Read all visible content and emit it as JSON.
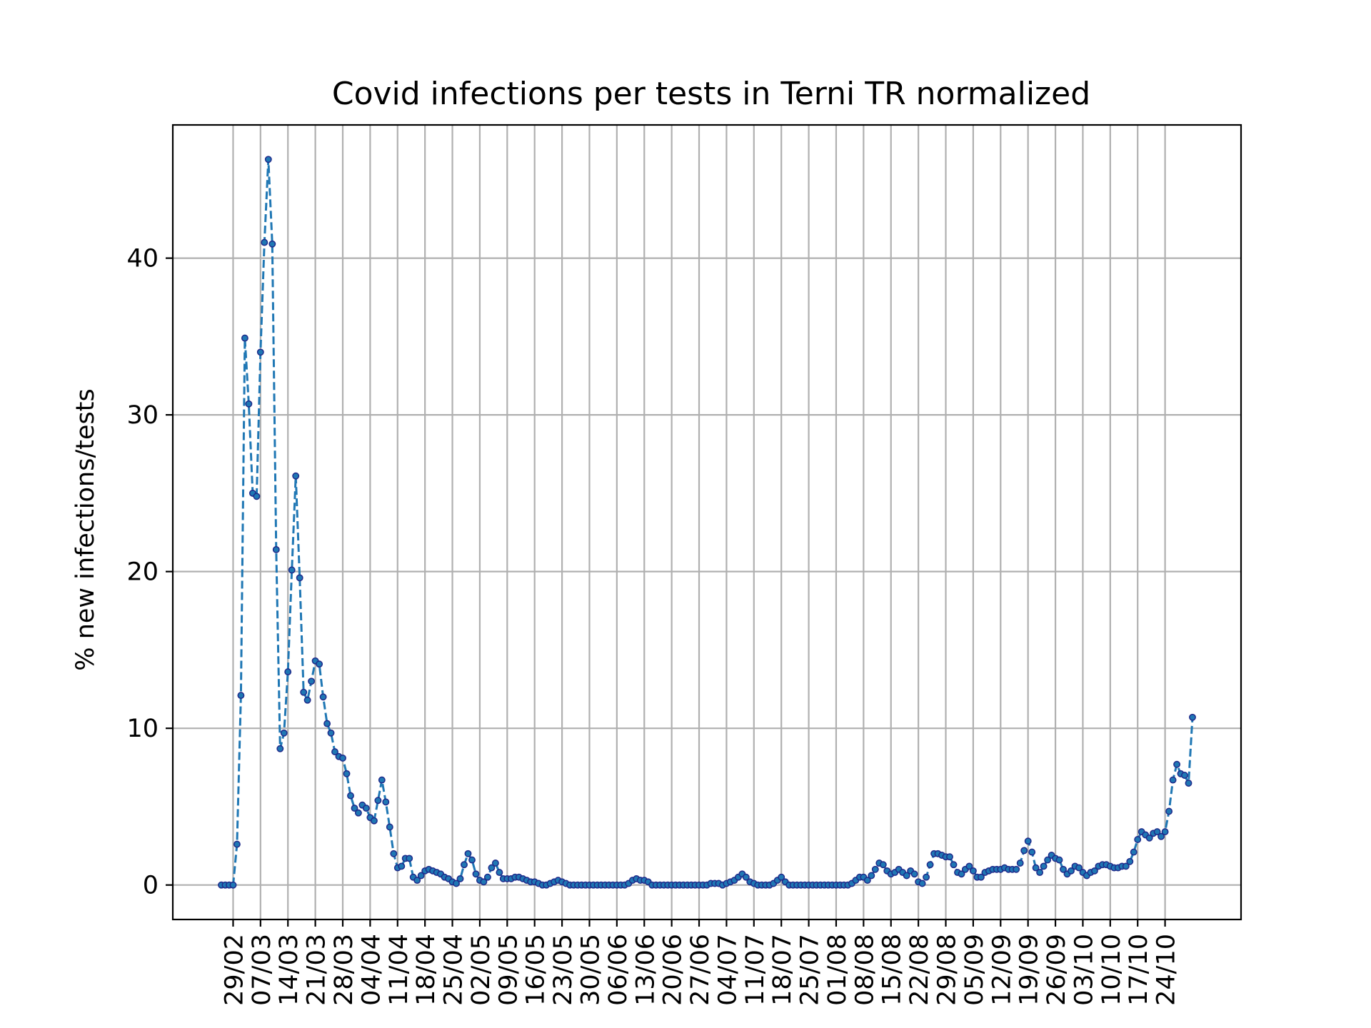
{
  "chart_data": {
    "type": "line",
    "title": "Covid infections per tests in Terni TR normalized",
    "xlabel": "",
    "ylabel": "% new infections/tests",
    "ylim": [
      -2.2,
      48.5
    ],
    "yticks": [
      0,
      10,
      20,
      30,
      40
    ],
    "xticks": [
      "29/02",
      "07/03",
      "14/03",
      "21/03",
      "28/03",
      "04/04",
      "11/04",
      "18/04",
      "25/04",
      "02/05",
      "09/05",
      "16/05",
      "23/05",
      "30/05",
      "06/06",
      "13/06",
      "20/06",
      "27/06",
      "04/07",
      "11/07",
      "18/07",
      "25/07",
      "01/08",
      "08/08",
      "15/08",
      "22/08",
      "29/08",
      "05/09",
      "12/09",
      "19/09",
      "26/09",
      "03/10",
      "10/10",
      "17/10",
      "24/10"
    ],
    "x_range": [
      "26/02",
      "31/10"
    ],
    "grid": true,
    "series": [
      {
        "color": "#1f77b4",
        "marker_color": "#1f2a8a",
        "points": [
          [
            "26/02",
            0
          ],
          [
            "27/02",
            0
          ],
          [
            "28/02",
            0
          ],
          [
            "29/02",
            0
          ],
          [
            "01/03",
            2.6
          ],
          [
            "02/03",
            12.1
          ],
          [
            "03/03",
            34.9
          ],
          [
            "04/03",
            30.7
          ],
          [
            "05/03",
            25
          ],
          [
            "06/03",
            24.8
          ],
          [
            "07/03",
            34
          ],
          [
            "08/03",
            41
          ],
          [
            "09/03",
            46.3
          ],
          [
            "10/03",
            40.9
          ],
          [
            "11/03",
            21.4
          ],
          [
            "12/03",
            8.7
          ],
          [
            "13/03",
            9.7
          ],
          [
            "14/03",
            13.6
          ],
          [
            "15/03",
            20.1
          ],
          [
            "16/03",
            26.1
          ],
          [
            "17/03",
            19.6
          ],
          [
            "18/03",
            12.3
          ],
          [
            "19/03",
            11.8
          ],
          [
            "20/03",
            13
          ],
          [
            "21/03",
            14.3
          ],
          [
            "22/03",
            14.1
          ],
          [
            "23/03",
            12
          ],
          [
            "24/03",
            10.3
          ],
          [
            "25/03",
            9.7
          ],
          [
            "26/03",
            8.5
          ],
          [
            "27/03",
            8.2
          ],
          [
            "28/03",
            8.1
          ],
          [
            "29/03",
            7.1
          ],
          [
            "30/03",
            5.7
          ],
          [
            "31/03",
            4.9
          ],
          [
            "01/04",
            4.6
          ],
          [
            "02/04",
            5.1
          ],
          [
            "03/04",
            4.9
          ],
          [
            "04/04",
            4.3
          ],
          [
            "05/04",
            4.1
          ],
          [
            "06/04",
            5.4
          ],
          [
            "07/04",
            6.7
          ],
          [
            "08/04",
            5.3
          ],
          [
            "09/04",
            3.7
          ],
          [
            "10/04",
            2
          ],
          [
            "11/04",
            1.1
          ],
          [
            "12/04",
            1.2
          ],
          [
            "13/04",
            1.7
          ],
          [
            "14/04",
            1.7
          ],
          [
            "15/04",
            0.5
          ],
          [
            "16/04",
            0.3
          ],
          [
            "17/04",
            0.6
          ],
          [
            "18/04",
            0.9
          ],
          [
            "19/04",
            1
          ],
          [
            "20/04",
            0.9
          ],
          [
            "21/04",
            0.8
          ],
          [
            "22/04",
            0.7
          ],
          [
            "23/04",
            0.5
          ],
          [
            "24/04",
            0.4
          ],
          [
            "25/04",
            0.2
          ],
          [
            "26/04",
            0.1
          ],
          [
            "27/04",
            0.4
          ],
          [
            "28/04",
            1.3
          ],
          [
            "29/04",
            2
          ],
          [
            "30/04",
            1.6
          ],
          [
            "01/05",
            0.7
          ],
          [
            "02/05",
            0.3
          ],
          [
            "03/05",
            0.2
          ],
          [
            "04/05",
            0.5
          ],
          [
            "05/05",
            1.1
          ],
          [
            "06/05",
            1.4
          ],
          [
            "07/05",
            0.8
          ],
          [
            "08/05",
            0.4
          ],
          [
            "09/05",
            0.4
          ],
          [
            "10/05",
            0.4
          ],
          [
            "11/05",
            0.5
          ],
          [
            "12/05",
            0.5
          ],
          [
            "13/05",
            0.4
          ],
          [
            "14/05",
            0.3
          ],
          [
            "15/05",
            0.2
          ],
          [
            "16/05",
            0.2
          ],
          [
            "17/05",
            0.1
          ],
          [
            "18/05",
            0
          ],
          [
            "19/05",
            0
          ],
          [
            "20/05",
            0.1
          ],
          [
            "21/05",
            0.2
          ],
          [
            "22/05",
            0.3
          ],
          [
            "23/05",
            0.2
          ],
          [
            "24/05",
            0.1
          ],
          [
            "25/05",
            0
          ],
          [
            "26/05",
            0
          ],
          [
            "27/05",
            0
          ],
          [
            "28/05",
            0
          ],
          [
            "29/05",
            0
          ],
          [
            "30/05",
            0
          ],
          [
            "31/05",
            0
          ],
          [
            "01/06",
            0
          ],
          [
            "02/06",
            0
          ],
          [
            "03/06",
            0
          ],
          [
            "04/06",
            0
          ],
          [
            "05/06",
            0
          ],
          [
            "06/06",
            0
          ],
          [
            "07/06",
            0
          ],
          [
            "08/06",
            0
          ],
          [
            "09/06",
            0.1
          ],
          [
            "10/06",
            0.3
          ],
          [
            "11/06",
            0.4
          ],
          [
            "12/06",
            0.3
          ],
          [
            "13/06",
            0.3
          ],
          [
            "14/06",
            0.2
          ],
          [
            "15/06",
            0
          ],
          [
            "16/06",
            0
          ],
          [
            "17/06",
            0
          ],
          [
            "18/06",
            0
          ],
          [
            "19/06",
            0
          ],
          [
            "20/06",
            0
          ],
          [
            "21/06",
            0
          ],
          [
            "22/06",
            0
          ],
          [
            "23/06",
            0
          ],
          [
            "24/06",
            0
          ],
          [
            "25/06",
            0
          ],
          [
            "26/06",
            0
          ],
          [
            "27/06",
            0
          ],
          [
            "28/06",
            0
          ],
          [
            "29/06",
            0
          ],
          [
            "30/06",
            0.1
          ],
          [
            "01/07",
            0.1
          ],
          [
            "02/07",
            0.1
          ],
          [
            "03/07",
            0
          ],
          [
            "04/07",
            0.1
          ],
          [
            "05/07",
            0.2
          ],
          [
            "06/07",
            0.3
          ],
          [
            "07/07",
            0.5
          ],
          [
            "08/07",
            0.7
          ],
          [
            "09/07",
            0.5
          ],
          [
            "10/07",
            0.2
          ],
          [
            "11/07",
            0.1
          ],
          [
            "12/07",
            0
          ],
          [
            "13/07",
            0
          ],
          [
            "14/07",
            0
          ],
          [
            "15/07",
            0
          ],
          [
            "16/07",
            0.1
          ],
          [
            "17/07",
            0.3
          ],
          [
            "18/07",
            0.5
          ],
          [
            "19/07",
            0.2
          ],
          [
            "20/07",
            0
          ],
          [
            "21/07",
            0
          ],
          [
            "22/07",
            0
          ],
          [
            "23/07",
            0
          ],
          [
            "24/07",
            0
          ],
          [
            "25/07",
            0
          ],
          [
            "26/07",
            0
          ],
          [
            "27/07",
            0
          ],
          [
            "28/07",
            0
          ],
          [
            "29/07",
            0
          ],
          [
            "30/07",
            0
          ],
          [
            "31/07",
            0
          ],
          [
            "01/08",
            0
          ],
          [
            "02/08",
            0
          ],
          [
            "03/08",
            0
          ],
          [
            "04/08",
            0
          ],
          [
            "05/08",
            0.1
          ],
          [
            "06/08",
            0.3
          ],
          [
            "07/08",
            0.5
          ],
          [
            "08/08",
            0.5
          ],
          [
            "09/08",
            0.3
          ],
          [
            "10/08",
            0.6
          ],
          [
            "11/08",
            1
          ],
          [
            "12/08",
            1.4
          ],
          [
            "13/08",
            1.3
          ],
          [
            "14/08",
            0.9
          ],
          [
            "15/08",
            0.7
          ],
          [
            "16/08",
            0.8
          ],
          [
            "17/08",
            1
          ],
          [
            "18/08",
            0.8
          ],
          [
            "19/08",
            0.6
          ],
          [
            "20/08",
            0.9
          ],
          [
            "21/08",
            0.7
          ],
          [
            "22/08",
            0.2
          ],
          [
            "23/08",
            0.1
          ],
          [
            "24/08",
            0.5
          ],
          [
            "25/08",
            1.3
          ],
          [
            "26/08",
            2
          ],
          [
            "27/08",
            2
          ],
          [
            "28/08",
            1.9
          ],
          [
            "29/08",
            1.8
          ],
          [
            "30/08",
            1.8
          ],
          [
            "31/08",
            1.3
          ],
          [
            "01/09",
            0.8
          ],
          [
            "02/09",
            0.7
          ],
          [
            "03/09",
            1
          ],
          [
            "04/09",
            1.2
          ],
          [
            "05/09",
            0.9
          ],
          [
            "06/09",
            0.5
          ],
          [
            "07/09",
            0.5
          ],
          [
            "08/09",
            0.8
          ],
          [
            "09/09",
            0.9
          ],
          [
            "10/09",
            1
          ],
          [
            "11/09",
            1
          ],
          [
            "12/09",
            1
          ],
          [
            "13/09",
            1.1
          ],
          [
            "14/09",
            1
          ],
          [
            "15/09",
            1
          ],
          [
            "16/09",
            1
          ],
          [
            "17/09",
            1.4
          ],
          [
            "18/09",
            2.2
          ],
          [
            "19/09",
            2.8
          ],
          [
            "20/09",
            2.1
          ],
          [
            "21/09",
            1.1
          ],
          [
            "22/09",
            0.8
          ],
          [
            "23/09",
            1.2
          ],
          [
            "24/09",
            1.6
          ],
          [
            "25/09",
            1.9
          ],
          [
            "26/09",
            1.7
          ],
          [
            "27/09",
            1.6
          ],
          [
            "28/09",
            1
          ],
          [
            "29/09",
            0.7
          ],
          [
            "30/09",
            0.9
          ],
          [
            "01/10",
            1.2
          ],
          [
            "02/10",
            1.1
          ],
          [
            "03/10",
            0.8
          ],
          [
            "04/10",
            0.6
          ],
          [
            "05/10",
            0.8
          ],
          [
            "06/10",
            0.9
          ],
          [
            "07/10",
            1.2
          ],
          [
            "08/10",
            1.3
          ],
          [
            "09/10",
            1.3
          ],
          [
            "10/10",
            1.2
          ],
          [
            "11/10",
            1.1
          ],
          [
            "12/10",
            1.1
          ],
          [
            "13/10",
            1.2
          ],
          [
            "14/10",
            1.2
          ],
          [
            "15/10",
            1.5
          ],
          [
            "16/10",
            2.1
          ],
          [
            "17/10",
            2.9
          ],
          [
            "18/10",
            3.4
          ],
          [
            "19/10",
            3.2
          ],
          [
            "20/10",
            3
          ],
          [
            "21/10",
            3.3
          ],
          [
            "22/10",
            3.4
          ],
          [
            "23/10",
            3.1
          ],
          [
            "24/10",
            3.4
          ],
          [
            "25/10",
            4.7
          ],
          [
            "26/10",
            6.7
          ],
          [
            "27/10",
            7.7
          ],
          [
            "28/10",
            7.1
          ],
          [
            "29/10",
            7
          ],
          [
            "30/10",
            6.5
          ],
          [
            "31/10",
            10.7
          ]
        ]
      }
    ]
  }
}
